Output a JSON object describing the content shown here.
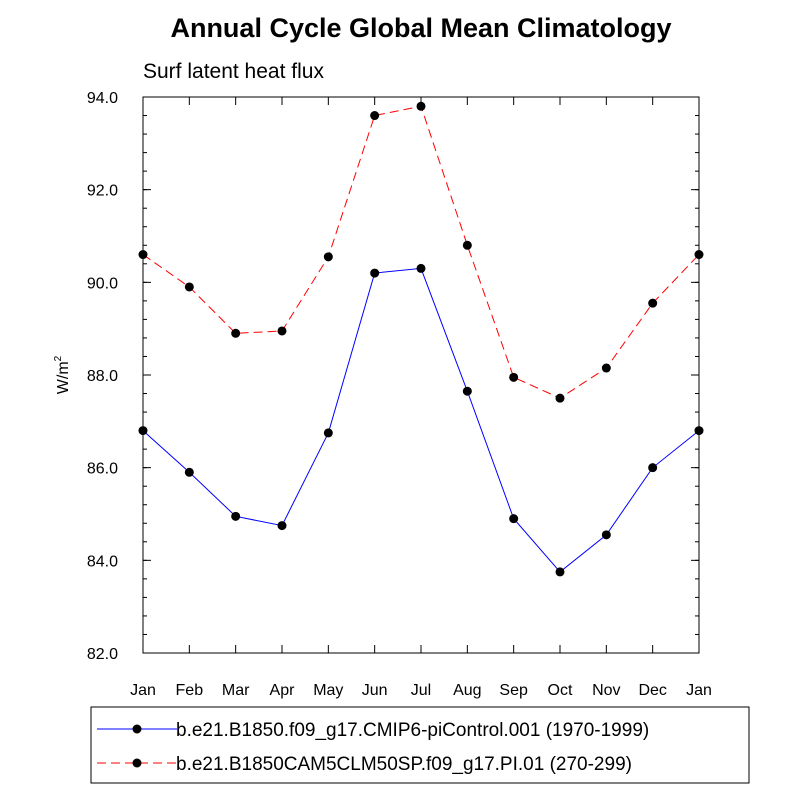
{
  "chart_data": {
    "type": "line",
    "title": "Annual Cycle Global Mean Climatology",
    "subtitle": "Surf latent heat flux",
    "ylabel": "W/m",
    "ylabel_superscript": "2",
    "xlabel": "",
    "categories": [
      "Jan",
      "Feb",
      "Mar",
      "Apr",
      "May",
      "Jun",
      "Jul",
      "Aug",
      "Sep",
      "Oct",
      "Nov",
      "Dec",
      "Jan"
    ],
    "ylim": [
      82.0,
      94.0
    ],
    "yticks": [
      82.0,
      84.0,
      86.0,
      88.0,
      90.0,
      92.0,
      94.0
    ],
    "ytick_labels": [
      "82.0",
      "84.0",
      "86.0",
      "88.0",
      "90.0",
      "92.0",
      "94.0"
    ],
    "grid": false,
    "legend_position": "bottom",
    "series": [
      {
        "name": "b.e21.B1850.f09_g17.CMIP6-piControl.001 (1970-1999)",
        "color": "#0000ff",
        "style": "solid",
        "values": [
          86.8,
          85.9,
          84.95,
          84.75,
          86.75,
          90.2,
          90.3,
          87.65,
          84.9,
          83.75,
          84.55,
          86.0,
          86.8
        ]
      },
      {
        "name": "b.e21.B1850CAM5CLM50SP.f09_g17.PI.01 (270-299)",
        "color": "#ff0000",
        "style": "dashed",
        "values": [
          90.6,
          89.9,
          88.9,
          88.95,
          90.55,
          93.6,
          93.8,
          90.8,
          87.95,
          87.5,
          88.15,
          89.55,
          90.6
        ]
      }
    ]
  }
}
